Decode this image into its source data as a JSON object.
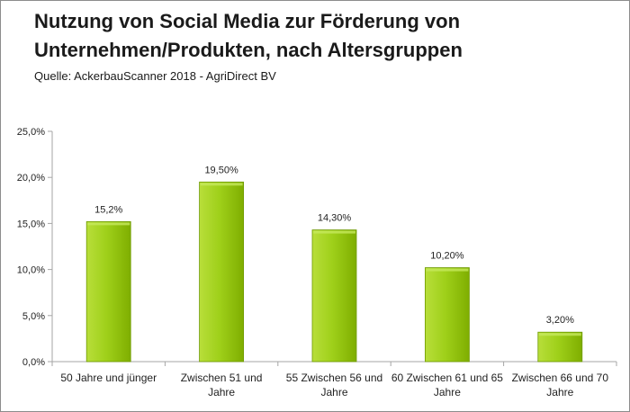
{
  "title": "Nutzung von Social Media zur Förderung von\nUnternehmen/Produkten, nach Altersgruppen",
  "subtitle": "Quelle: AckerbauScanner 2018 - AgriDirect BV",
  "colors": {
    "bar": "#99cc00",
    "bar_light": "#c6e85c",
    "bar_dark": "#6e9a00",
    "axis": "#a6a6a6"
  },
  "chart_data": {
    "type": "bar",
    "title": "Nutzung von Social Media zur Förderung von Unternehmen/Produkten, nach Altersgruppen",
    "subtitle": "Quelle: AckerbauScanner 2018 - AgriDirect BV",
    "categories": [
      [
        "50 Jahre und jünger"
      ],
      [
        "Zwischen 51 und",
        "Jahre"
      ],
      [
        "55 Zwischen 56 und",
        "Jahre"
      ],
      [
        "60 Zwischen 61 und 65",
        "Jahre"
      ],
      [
        "Zwischen 66 und 70",
        "Jahre"
      ]
    ],
    "values": [
      15.2,
      19.5,
      14.3,
      10.2,
      3.2
    ],
    "data_labels": [
      "15,2%",
      "19,50%",
      "14,30%",
      "10,20%",
      "3,20%"
    ],
    "yticks": [
      {
        "value": 0,
        "label": "0,0%"
      },
      {
        "value": 5,
        "label": "5,0%"
      },
      {
        "value": 10,
        "label": "10,0%"
      },
      {
        "value": 15,
        "label": "15,0%"
      },
      {
        "value": 20,
        "label": "20,0%"
      },
      {
        "value": 25,
        "label": "25,0%"
      }
    ],
    "ylim": [
      0,
      25
    ],
    "grid": false,
    "legend": "none"
  }
}
